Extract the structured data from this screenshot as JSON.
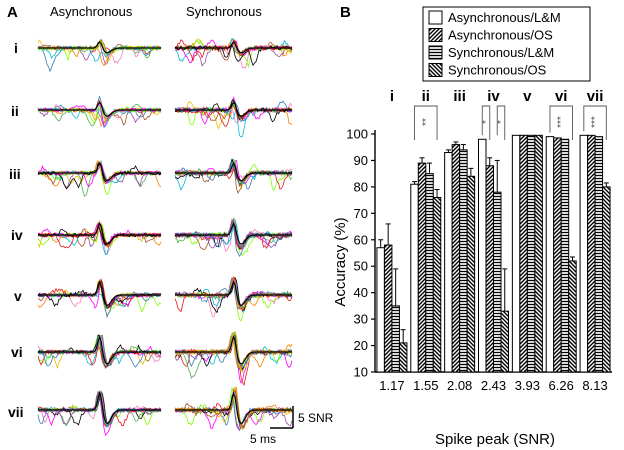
{
  "panel_a": {
    "letter": "A",
    "col_titles": [
      "Asynchronous",
      "Synchronous"
    ],
    "row_labels": [
      "i",
      "ii",
      "iii",
      "iv",
      "v",
      "vi",
      "vii"
    ],
    "scale_y_label": "5 SNR",
    "scale_x_label": "5 ms",
    "trace_colors": [
      "#e41a1c",
      "#377eb8",
      "#4daf4a",
      "#984ea3",
      "#ff7f00",
      "#e6c200",
      "#a65628",
      "#f781bf",
      "#00bcd4",
      "#7fff00",
      "#ff00ff",
      "#000000"
    ]
  },
  "panel_b": {
    "letter": "B"
  },
  "chart_data": {
    "type": "bar",
    "title": "",
    "xlabel": "Spike peak (SNR)",
    "ylabel": "Accuracy (%)",
    "ylim": [
      10,
      100
    ],
    "yticks": [
      10,
      20,
      30,
      40,
      50,
      60,
      70,
      80,
      90,
      100
    ],
    "group_labels": [
      "i",
      "ii",
      "iii",
      "iv",
      "v",
      "vi",
      "vii"
    ],
    "categories": [
      "1.17",
      "1.55",
      "2.08",
      "2.43",
      "3.93",
      "6.26",
      "8.13"
    ],
    "series": [
      {
        "name": "Asynchronous/L&M",
        "pattern": "white",
        "values": [
          57,
          81,
          93,
          98,
          99.5,
          99,
          99.5
        ],
        "errors": [
          3,
          1,
          1,
          0.5,
          0.3,
          0.5,
          0.3
        ]
      },
      {
        "name": "Asynchronous/OS",
        "pattern": "diag-right",
        "values": [
          58,
          89,
          96,
          88,
          99.5,
          98.5,
          99.5
        ],
        "errors": [
          8,
          2,
          1,
          3,
          0.3,
          0.5,
          0.5
        ]
      },
      {
        "name": "Synchronous/L&M",
        "pattern": "horizontal",
        "values": [
          35,
          85,
          94,
          78,
          99.5,
          98,
          99
        ],
        "errors": [
          14,
          4,
          2,
          12,
          0.3,
          0.5,
          0.5
        ]
      },
      {
        "name": "Synchronous/OS",
        "pattern": "diag-left",
        "values": [
          21,
          76,
          84,
          33,
          99.5,
          52,
          80
        ],
        "errors": [
          5,
          3,
          3,
          16,
          0.3,
          1.5,
          1.5
        ]
      }
    ],
    "significance": [
      {
        "group": "ii",
        "label": "**"
      },
      {
        "group": "iv",
        "label": "*"
      },
      {
        "group": "iv",
        "label": "*"
      },
      {
        "group": "vi",
        "label": "***"
      },
      {
        "group": "vii",
        "label": "***"
      }
    ],
    "legend_position": "top"
  }
}
